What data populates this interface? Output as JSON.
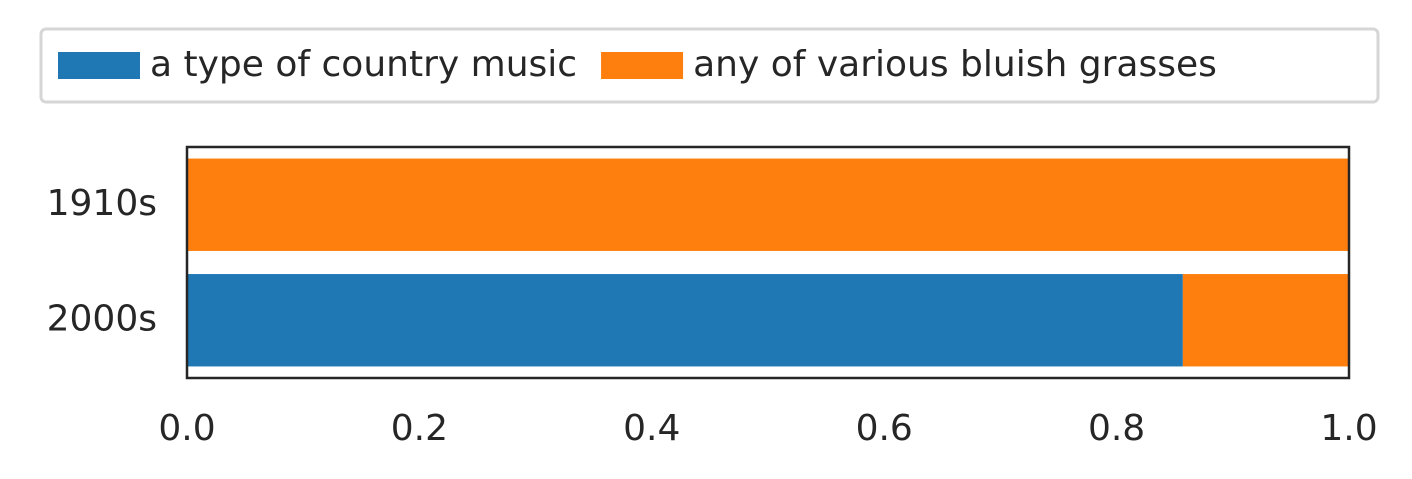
{
  "chart_data": {
    "type": "stacked-barh",
    "categories": [
      "1910s",
      "2000s"
    ],
    "series": [
      {
        "name": "a type of country music",
        "color": "#1f77b4",
        "values": [
          0,
          0.857
        ]
      },
      {
        "name": "any of various bluish grasses",
        "color": "#ff7f0e",
        "values": [
          1,
          0.143
        ]
      }
    ],
    "xlim": [
      0,
      1
    ],
    "xticks": [
      {
        "value": 0,
        "label": "0.0"
      },
      0.2,
      0.4,
      0.6,
      0.8,
      {
        "value": 1,
        "label": "1.0"
      }
    ]
  }
}
